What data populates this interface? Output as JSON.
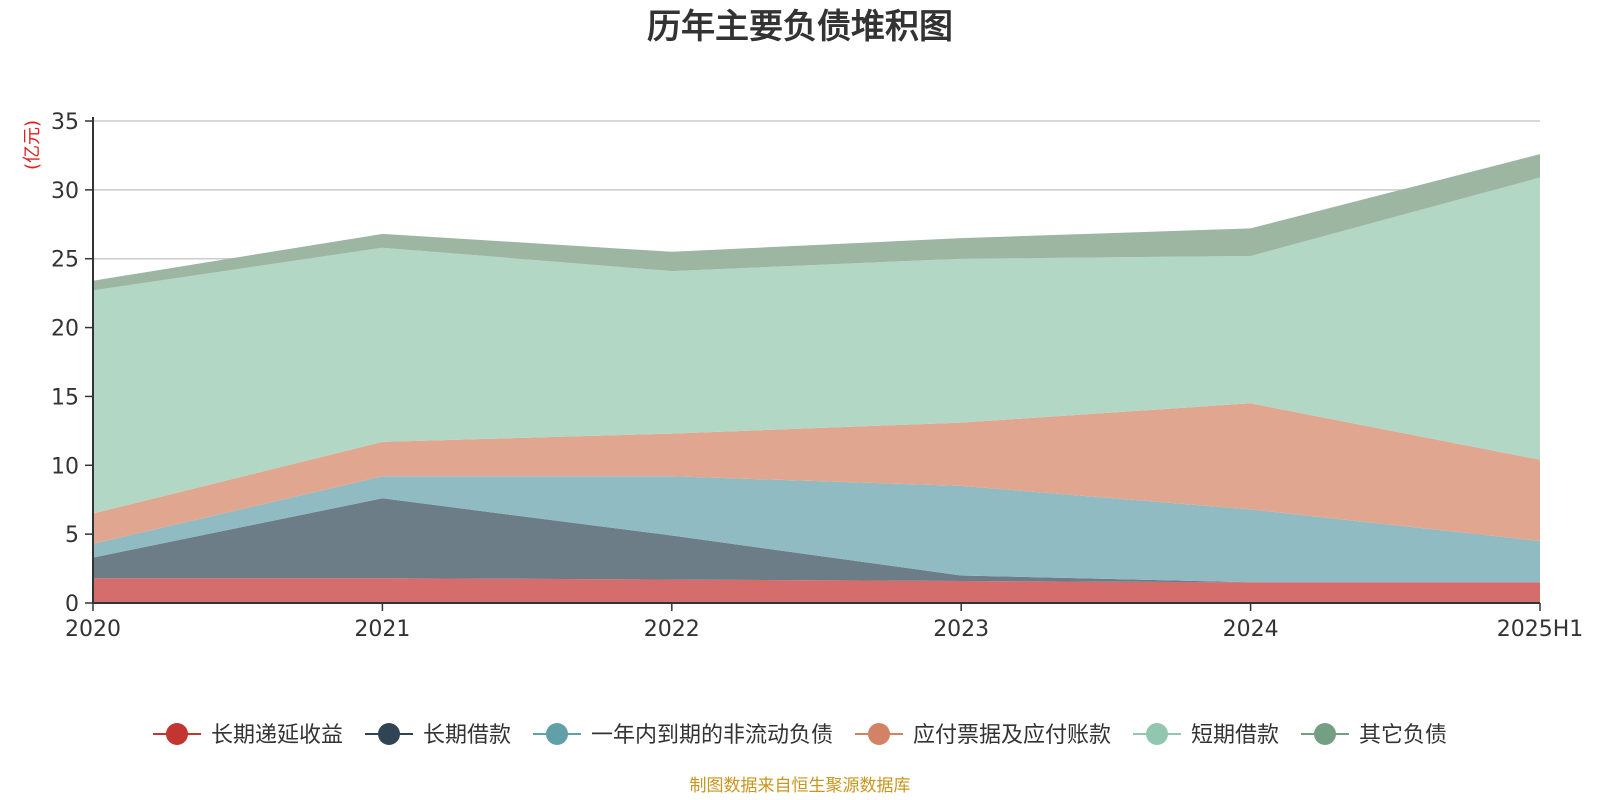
{
  "chart_data": {
    "type": "area",
    "stacked": true,
    "title": "历年主要负债堆积图",
    "unit_label": "(亿元)",
    "source_note": "制图数据来自恒生聚源数据库",
    "ylim": [
      0,
      35
    ],
    "yticks": [
      "0",
      "5",
      "10",
      "15",
      "20",
      "25",
      "30",
      "35"
    ],
    "categories": [
      "2020",
      "2021",
      "2022",
      "2023",
      "2024",
      "2025H1"
    ],
    "grid": true,
    "legend_position": "bottom",
    "series": [
      {
        "name": "长期递延收益",
        "color": "#c23531",
        "fill": "#d46d6b",
        "values": [
          1.8,
          1.8,
          1.7,
          1.6,
          1.5,
          1.5
        ]
      },
      {
        "name": "长期借款",
        "color": "#2f4554",
        "fill": "#6d7d88",
        "values": [
          1.5,
          5.8,
          3.2,
          0.4,
          0.0,
          0.0
        ]
      },
      {
        "name": "一年内到期的非流动负债",
        "color": "#61a0a8",
        "fill": "#90bbc2",
        "values": [
          1.0,
          1.6,
          4.3,
          6.5,
          5.3,
          3.0
        ]
      },
      {
        "name": "应付票据及应付账款",
        "color": "#d48265",
        "fill": "#e0a690",
        "values": [
          2.2,
          2.5,
          3.1,
          4.6,
          7.7,
          5.9
        ]
      },
      {
        "name": "短期借款",
        "color": "#91c7ae",
        "fill": "#b2d7c5",
        "values": [
          16.2,
          14.1,
          11.8,
          11.9,
          10.7,
          20.5
        ]
      },
      {
        "name": "其它负债",
        "color": "#749f83",
        "fill": "#9db6a2",
        "values": [
          0.7,
          1.0,
          1.4,
          1.5,
          2.0,
          1.7
        ]
      }
    ]
  }
}
